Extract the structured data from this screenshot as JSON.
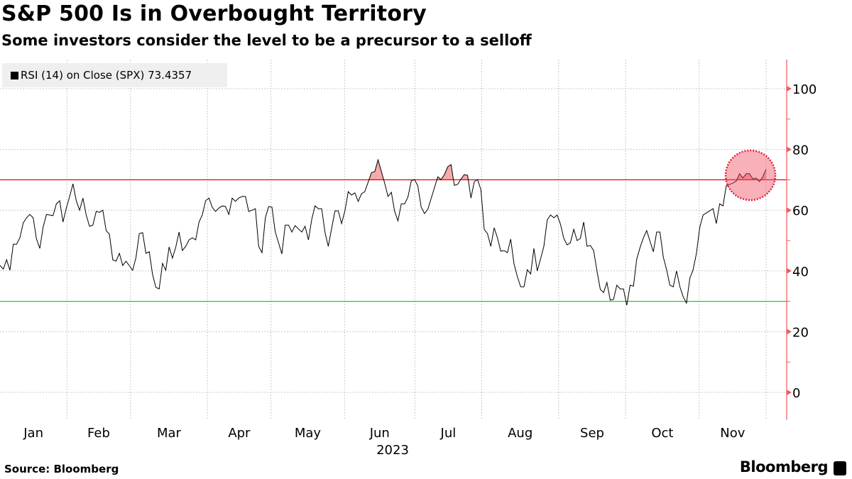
{
  "title": "S&P 500 Is in Overbought Territory",
  "subtitle": "Some investors consider the level to be a precursor to a selloff",
  "legend": {
    "label": "RSI (14)  on Close (SPX) 73.4357"
  },
  "source": "Source: Bloomberg",
  "brand": "Bloomberg",
  "colors": {
    "line": "#000000",
    "overbought": "#e8000b",
    "oversold": "#22cc22",
    "axis": "#f05a5a",
    "fill": "#f7a9ab"
  },
  "chart_data": {
    "type": "line",
    "title": "S&P 500 Is in Overbought Territory",
    "xlabel": "2023",
    "ylabel": "",
    "ylim": [
      -9,
      110
    ],
    "yticks": [
      0,
      20,
      40,
      60,
      80,
      100
    ],
    "overbought_level": 70,
    "oversold_level": 30,
    "grid": true,
    "legend_position": "top-left",
    "x_unit": "trading day index (Jan 3 - Dec 1, 2023)",
    "x_range": [
      0,
      229
    ],
    "months": [
      {
        "label": "Jan",
        "start": 0,
        "end": 20
      },
      {
        "label": "Feb",
        "start": 20,
        "end": 39
      },
      {
        "label": "Mar",
        "start": 39,
        "end": 62
      },
      {
        "label": "Apr",
        "start": 62,
        "end": 81
      },
      {
        "label": "May",
        "start": 81,
        "end": 103
      },
      {
        "label": "Jun",
        "start": 103,
        "end": 124
      },
      {
        "label": "Jul",
        "start": 124,
        "end": 144
      },
      {
        "label": "Aug",
        "start": 144,
        "end": 167
      },
      {
        "label": "Sep",
        "start": 167,
        "end": 187
      },
      {
        "label": "Oct",
        "start": 187,
        "end": 209
      },
      {
        "label": "Nov",
        "start": 209,
        "end": 229
      }
    ],
    "series": [
      {
        "name": "RSI (14) on Close (SPX)",
        "last": 73.4357,
        "values": [
          41.8,
          40.6,
          43.7,
          40.2,
          48.8,
          48.8,
          50.9,
          55.8,
          57.5,
          58.6,
          57.5,
          50.5,
          47.4,
          54.4,
          58.6,
          58.4,
          58.2,
          62.1,
          63.1,
          56.1,
          60.7,
          64.5,
          68.7,
          63.1,
          60.0,
          64.0,
          58.4,
          54.7,
          55.1,
          59.6,
          59.3,
          60.0,
          53.3,
          52.1,
          43.7,
          43.2,
          45.8,
          41.8,
          43.2,
          41.7,
          40.2,
          44.4,
          52.3,
          52.6,
          45.8,
          46.3,
          38.8,
          34.6,
          34.1,
          42.5,
          40.2,
          47.9,
          44.2,
          47.9,
          52.8,
          46.7,
          48.1,
          50.2,
          50.9,
          50.2,
          56.1,
          58.4,
          63.1,
          64.0,
          61.0,
          59.6,
          60.7,
          61.4,
          61.2,
          58.6,
          64.0,
          62.9,
          64.0,
          64.5,
          64.5,
          59.6,
          60.0,
          60.5,
          48.1,
          46.0,
          57.5,
          61.2,
          61.0,
          52.8,
          49.2,
          45.6,
          55.1,
          55.1,
          52.8,
          54.9,
          53.8,
          52.8,
          54.7,
          50.2,
          57.0,
          61.4,
          60.5,
          60.5,
          52.6,
          48.1,
          54.0,
          59.8,
          59.8,
          55.6,
          59.8,
          66.1,
          65.0,
          65.7,
          62.9,
          65.4,
          66.1,
          69.2,
          72.4,
          72.7,
          76.6,
          72.7,
          68.9,
          64.5,
          65.9,
          59.6,
          56.5,
          62.1,
          62.1,
          64.3,
          69.6,
          70.1,
          68.0,
          61.0,
          58.9,
          60.3,
          63.8,
          67.4,
          71.0,
          70.1,
          71.7,
          74.3,
          75.0,
          68.2,
          68.5,
          70.3,
          71.7,
          71.5,
          64.0,
          69.4,
          70.1,
          66.8,
          53.7,
          52.3,
          48.1,
          54.2,
          50.9,
          46.5,
          46.7,
          46.0,
          50.5,
          42.3,
          38.1,
          34.8,
          34.8,
          40.4,
          39.0,
          47.4,
          40.0,
          44.0,
          48.1,
          56.8,
          58.4,
          57.5,
          58.4,
          55.4,
          50.7,
          48.6,
          49.3,
          53.7,
          50.0,
          50.7,
          56.1,
          48.1,
          48.4,
          46.7,
          40.0,
          33.9,
          32.9,
          36.2,
          30.4,
          30.6,
          35.3,
          34.1,
          34.1,
          28.7,
          35.3,
          35.0,
          43.9,
          47.7,
          50.9,
          53.3,
          49.8,
          46.3,
          52.8,
          52.8,
          44.6,
          40.4,
          35.3,
          34.8,
          40.0,
          34.8,
          31.5,
          29.4,
          37.6,
          40.4,
          45.8,
          54.4,
          58.4,
          59.1,
          59.8,
          60.5,
          55.6,
          62.1,
          61.4,
          68.0,
          68.5,
          68.9,
          69.6,
          72.0,
          70.6,
          72.0,
          72.0,
          70.3,
          70.6,
          69.4,
          71.0,
          73.4357
        ]
      }
    ],
    "annotations": [
      {
        "type": "circle-highlight",
        "target": "latest values above 70"
      }
    ]
  }
}
